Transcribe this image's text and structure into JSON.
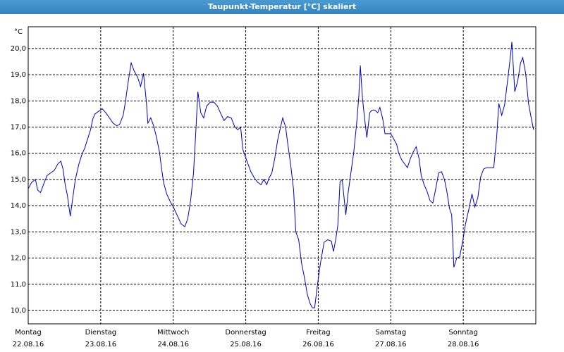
{
  "chart_data": {
    "type": "line",
    "title": "Taupunkt-Temperatur [°C] skaliert",
    "y_label": "°C",
    "x": [
      0,
      0.05,
      0.1,
      0.13,
      0.17,
      0.21,
      0.26,
      0.31,
      0.36,
      0.41,
      0.45,
      0.48,
      0.51,
      0.54,
      0.58,
      0.61,
      0.65,
      0.7,
      0.74,
      0.78,
      0.82,
      0.86,
      0.89,
      0.92,
      0.97,
      1.02,
      1.07,
      1.12,
      1.17,
      1.22,
      1.26,
      1.31,
      1.34,
      1.38,
      1.42,
      1.46,
      1.51,
      1.55,
      1.59,
      1.63,
      1.65,
      1.69,
      1.73,
      1.77,
      1.81,
      1.84,
      1.87,
      1.91,
      1.96,
      2.01,
      2.06,
      2.11,
      2.16,
      2.2,
      2.24,
      2.28,
      2.31,
      2.34,
      2.38,
      2.42,
      2.46,
      2.51,
      2.56,
      2.61,
      2.65,
      2.7,
      2.75,
      2.8,
      2.85,
      2.89,
      2.93,
      2.96,
      2.99,
      3.03,
      3.07,
      3.11,
      3.16,
      3.21,
      3.25,
      3.29,
      3.32,
      3.36,
      3.4,
      3.44,
      3.48,
      3.51,
      3.55,
      3.58,
      3.62,
      3.66,
      3.69,
      3.73,
      3.77,
      3.81,
      3.85,
      3.89,
      3.92,
      3.95,
      3.99,
      4.03,
      4.08,
      4.13,
      4.18,
      4.21,
      4.24,
      4.27,
      4.3,
      4.33,
      4.38,
      4.41,
      4.45,
      4.49,
      4.53,
      4.56,
      4.58,
      4.61,
      4.64,
      4.67,
      4.71,
      4.74,
      4.78,
      4.82,
      4.85,
      4.89,
      4.92,
      4.96,
      5.0,
      5.04,
      5.08,
      5.11,
      5.15,
      5.19,
      5.23,
      5.27,
      5.31,
      5.35,
      5.39,
      5.42,
      5.46,
      5.5,
      5.54,
      5.58,
      5.62,
      5.66,
      5.7,
      5.74,
      5.77,
      5.81,
      5.84,
      5.87,
      5.91,
      5.95,
      5.99,
      6.03,
      6.08,
      6.12,
      6.16,
      6.2,
      6.24,
      6.28,
      6.32,
      6.37,
      6.42,
      6.46,
      6.49,
      6.53,
      6.57,
      6.61,
      6.65,
      6.67,
      6.71,
      6.75,
      6.79,
      6.82,
      6.86,
      6.9,
      6.94,
      6.97
    ],
    "series": [
      {
        "name": "Taupunkt",
        "color": "#0000c0",
        "values": [
          14.65,
          14.9,
          15.0,
          14.6,
          14.5,
          14.8,
          15.15,
          15.25,
          15.35,
          15.6,
          15.7,
          15.4,
          14.8,
          14.4,
          13.6,
          14.2,
          15.0,
          15.6,
          15.95,
          16.2,
          16.55,
          16.9,
          17.3,
          17.5,
          17.6,
          17.7,
          17.55,
          17.35,
          17.15,
          17.05,
          17.1,
          17.45,
          17.95,
          18.75,
          19.45,
          19.15,
          18.9,
          18.55,
          19.05,
          17.95,
          17.15,
          17.35,
          17.05,
          16.6,
          16.05,
          15.4,
          14.85,
          14.45,
          14.15,
          13.9,
          13.6,
          13.3,
          13.2,
          13.5,
          14.2,
          15.25,
          16.75,
          18.35,
          17.55,
          17.35,
          17.8,
          17.95,
          17.95,
          17.8,
          17.55,
          17.25,
          17.4,
          17.35,
          17.0,
          16.9,
          17.0,
          16.15,
          15.9,
          15.6,
          15.3,
          15.1,
          14.9,
          14.8,
          15.0,
          14.8,
          15.05,
          15.25,
          15.8,
          16.5,
          17.0,
          17.35,
          17.0,
          16.35,
          15.55,
          14.6,
          13.0,
          12.7,
          11.8,
          11.25,
          10.6,
          10.25,
          10.1,
          10.1,
          11.0,
          11.8,
          12.6,
          12.7,
          12.65,
          12.25,
          12.7,
          13.25,
          14.9,
          15.0,
          13.65,
          14.45,
          15.25,
          16.05,
          17.15,
          18.2,
          19.35,
          18.1,
          17.3,
          16.6,
          17.55,
          17.65,
          17.65,
          17.55,
          17.75,
          17.3,
          16.75,
          16.75,
          16.75,
          16.55,
          16.35,
          16.0,
          15.75,
          15.6,
          15.45,
          15.8,
          16.05,
          16.25,
          15.8,
          15.15,
          14.8,
          14.55,
          14.2,
          14.1,
          14.65,
          15.25,
          15.3,
          15.0,
          14.6,
          13.9,
          13.65,
          11.65,
          12.0,
          12.05,
          12.6,
          13.3,
          13.9,
          14.45,
          13.95,
          14.3,
          15.1,
          15.4,
          15.45,
          15.45,
          15.45,
          16.6,
          17.9,
          17.45,
          17.85,
          18.75,
          19.7,
          20.25,
          18.35,
          18.75,
          19.45,
          19.65,
          19.05,
          17.9,
          17.3,
          16.9
        ]
      }
    ],
    "xlim": [
      0,
      7
    ],
    "xticks": [
      {
        "value": 0,
        "label": "Montag",
        "date": "22.08.16"
      },
      {
        "value": 1,
        "label": "Dienstag",
        "date": "23.08.16"
      },
      {
        "value": 2,
        "label": "Mittwoch",
        "date": "24.08.16"
      },
      {
        "value": 3,
        "label": "Donnerstag",
        "date": "25.08.16"
      },
      {
        "value": 4,
        "label": "Freitag",
        "date": "26.08.16"
      },
      {
        "value": 5,
        "label": "Samstag",
        "date": "27.08.16"
      },
      {
        "value": 6,
        "label": "Sonntag",
        "date": "28.08.16"
      }
    ],
    "ylim": [
      9.49,
      20.83
    ],
    "yticks": [
      {
        "value": 10,
        "label": "10,0"
      },
      {
        "value": 11,
        "label": "11,0"
      },
      {
        "value": 12,
        "label": "12,0"
      },
      {
        "value": 13,
        "label": "13,0"
      },
      {
        "value": 14,
        "label": "14,0"
      },
      {
        "value": 15,
        "label": "15,0"
      },
      {
        "value": 16,
        "label": "16,0"
      },
      {
        "value": 17,
        "label": "17,0"
      },
      {
        "value": 18,
        "label": "18,0"
      },
      {
        "value": 19,
        "label": "19,0"
      },
      {
        "value": 20,
        "label": "20,0"
      }
    ],
    "grid": true
  }
}
